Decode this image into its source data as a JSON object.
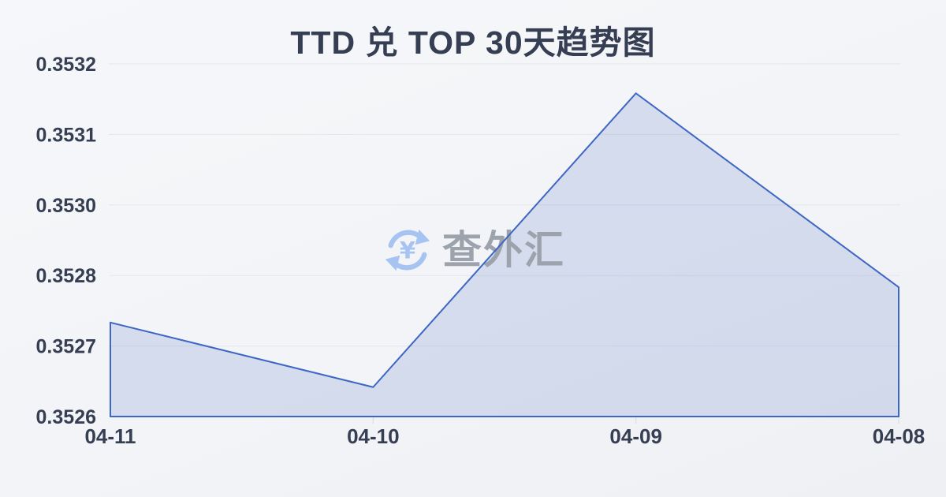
{
  "page": {
    "title": "TTD 兑 TOP 30天趋势图"
  },
  "watermark": {
    "text": "查外汇",
    "icon": "currency-exchange-icon"
  },
  "colors": {
    "background": "#f2f4f7",
    "text": "#353e52",
    "grid": "#e3e6eb",
    "axis": "#d9dce2",
    "tick": "#d7dade",
    "line": "#3d66c5",
    "fill": "rgba(77,110,196,0.18)",
    "wmicon": "#a6c3f1",
    "wmtext": "#9da3ad"
  },
  "chart_data": {
    "type": "area",
    "title": "TTD 兑 TOP 30天趋势图",
    "series_name": "TTD/TOP",
    "categories": [
      "04-11",
      "04-10",
      "04-09",
      "04-08"
    ],
    "values": [
      0.35276,
      0.35265,
      0.35315,
      0.35282
    ],
    "xlabel": "",
    "ylabel": "",
    "ylim": [
      0.3526,
      0.3532
    ],
    "yticks": [
      {
        "value": 0.3532,
        "label": "0.3532"
      },
      {
        "value": 0.35308,
        "label": "0.3531"
      },
      {
        "value": 0.35296,
        "label": "0.3530"
      },
      {
        "value": 0.35284,
        "label": "0.3528"
      },
      {
        "value": 0.35272,
        "label": "0.3527"
      },
      {
        "value": 0.3526,
        "label": "0.3526"
      }
    ],
    "grid": true,
    "legend": false
  }
}
